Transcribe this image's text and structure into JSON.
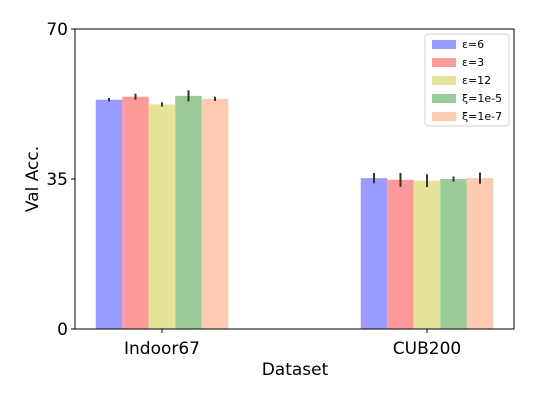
{
  "chart_data": {
    "type": "bar",
    "xlabel": "Dataset",
    "ylabel": "Val Acc.",
    "ylim": [
      0,
      70
    ],
    "yticks": [
      0,
      35,
      70
    ],
    "categories": [
      "Indoor67",
      "CUB200"
    ],
    "legend_position": "top-right",
    "series": [
      {
        "name": "ε=6",
        "color": "#9a9aff",
        "values": [
          53.5,
          35.2
        ],
        "errors": [
          0.4,
          1.2
        ]
      },
      {
        "name": "ε=3",
        "color": "#ff9a9a",
        "values": [
          54.2,
          34.8
        ],
        "errors": [
          0.7,
          1.6
        ]
      },
      {
        "name": "ε=12",
        "color": "#e5e59a",
        "values": [
          52.4,
          34.6
        ],
        "errors": [
          0.5,
          1.5
        ]
      },
      {
        "name": "ξ=1e-5",
        "color": "#99cc99",
        "values": [
          54.4,
          35.0
        ],
        "errors": [
          1.3,
          0.6
        ]
      },
      {
        "name": "ξ=1e-7",
        "color": "#ffcab2",
        "values": [
          53.7,
          35.2
        ],
        "errors": [
          0.5,
          1.3
        ]
      }
    ]
  }
}
